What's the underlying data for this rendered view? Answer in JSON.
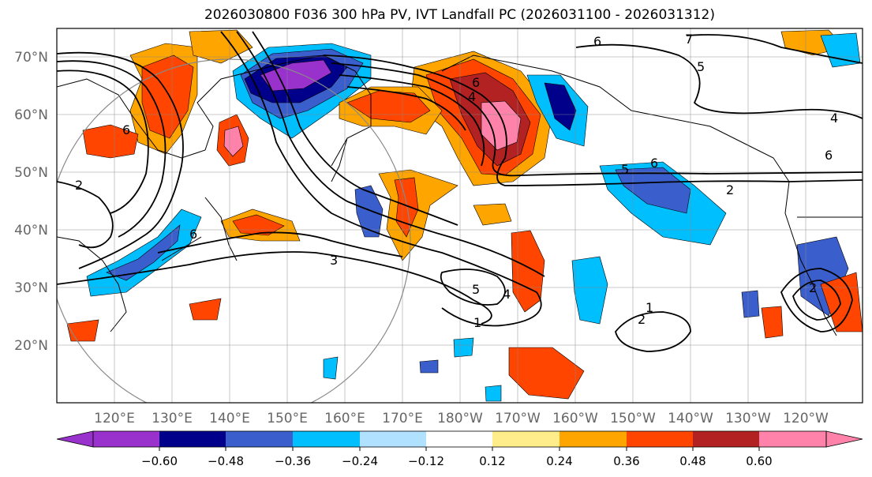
{
  "title": "2026030800 F036 300 hPa PV, IVT Landfall PC (2026031100 - 2026031312)",
  "lat_ticks": [
    "70°N",
    "60°N",
    "50°N",
    "40°N",
    "30°N",
    "20°N"
  ],
  "lon_ticks": [
    "120°E",
    "130°E",
    "140°E",
    "150°E",
    "160°E",
    "170°E",
    "180°W",
    "170°W",
    "160°W",
    "150°W",
    "140°W",
    "130°W",
    "120°W"
  ],
  "colorbar": {
    "ticks": [
      "−0.60",
      "−0.48",
      "−0.36",
      "−0.24",
      "−0.12",
      "0.12",
      "0.24",
      "0.36",
      "0.48",
      "0.60"
    ],
    "colors": [
      "#9932cc",
      "#00008b",
      "#3a5fcd",
      "#00bfff",
      "#b0e2ff",
      "#ffffff",
      "#ffec8b",
      "#ffa500",
      "#ff4500",
      "#b22222",
      "#ff82ab",
      "#ff82ab"
    ]
  },
  "contour_labels": [
    "6",
    "7",
    "5",
    "4",
    "6",
    "4",
    "6",
    "6",
    "5",
    "6",
    "2",
    "2",
    "6",
    "3",
    "5",
    "4",
    "1",
    "1",
    "2",
    "2"
  ],
  "colors": {
    "purple": "#9932cc",
    "navy": "#00008b",
    "royal": "#3a5fcd",
    "cyan": "#00bfff",
    "lightblue": "#b0e2ff",
    "yellow": "#ffec8b",
    "orange": "#ffa500",
    "redorange": "#ff4500",
    "darkred": "#b22222",
    "pink": "#ff82ab"
  }
}
